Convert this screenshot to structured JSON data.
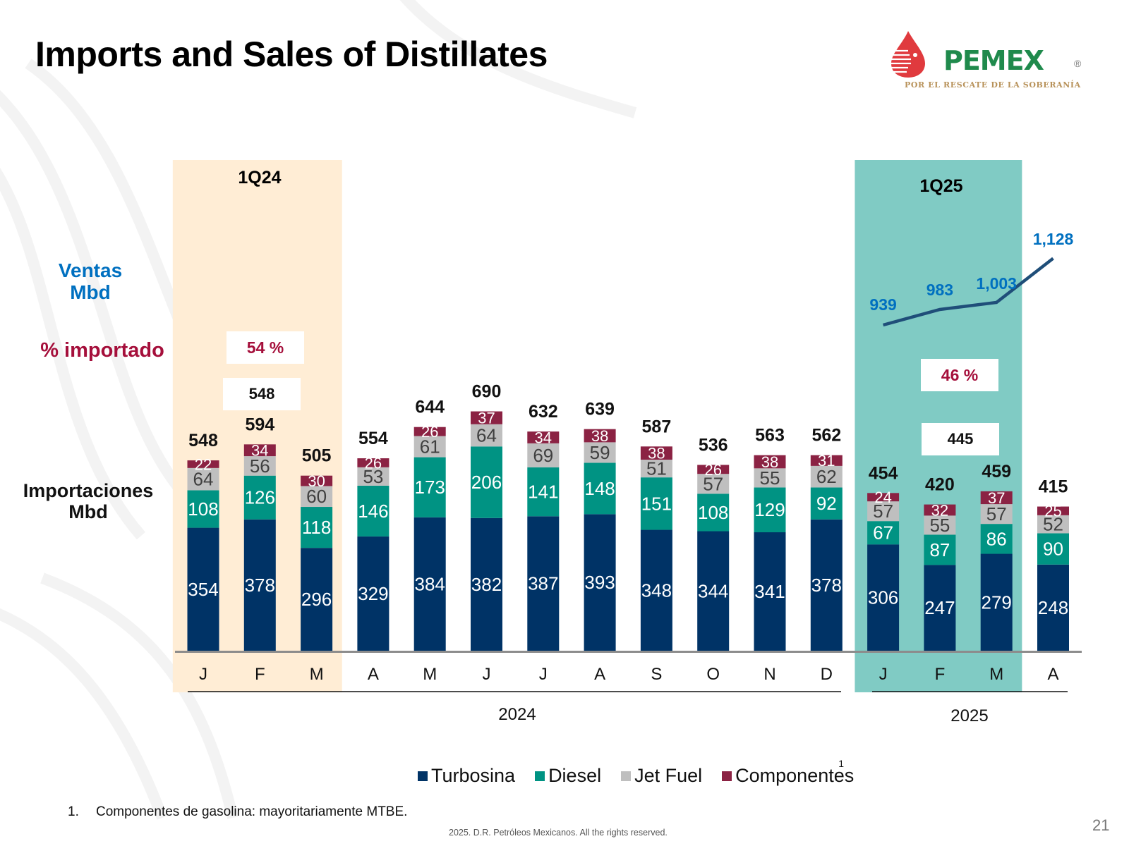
{
  "title": "Imports and Sales of Distillates",
  "logo": {
    "name": "PEMEX",
    "registered": "®",
    "tagline": "POR EL RESCATE DE LA SOBERANÍA"
  },
  "side_labels": {
    "ventas": [
      "Ventas",
      "Mbd"
    ],
    "pct_importado": "% importado",
    "importaciones": [
      "Importaciones",
      "Mbd"
    ]
  },
  "quarter_highlights": [
    {
      "label": "1Q24",
      "pct_importado": "54 %",
      "avg_imports": "548",
      "color": "#ffedd5"
    },
    {
      "label": "1Q25",
      "pct_importado": "46 %",
      "avg_imports": "445",
      "color": "#80cbc4"
    }
  ],
  "colors": {
    "turbosina": "#003366",
    "diesel": "#009383",
    "jet_fuel": "#bfbfbf",
    "componentes": "#8b2243",
    "ventas_line": "#1f4e79",
    "ventas_text": "#0070c0",
    "pct_text": "#a50f3b"
  },
  "chart_data": {
    "type": "bar",
    "stacked": true,
    "title": "Imports and Sales of Distillates",
    "xlabel": "",
    "ylabel": "Importaciones Mbd",
    "categories": [
      "J",
      "F",
      "M",
      "A",
      "M",
      "J",
      "J",
      "A",
      "S",
      "O",
      "N",
      "D",
      "J",
      "F",
      "M",
      "A"
    ],
    "year_groups": [
      {
        "label": "2024",
        "from": 0,
        "to": 11
      },
      {
        "label": "2025",
        "from": 12,
        "to": 15
      }
    ],
    "series": [
      {
        "name": "Turbosina",
        "key": "turbosina",
        "values": [
          354,
          378,
          296,
          329,
          384,
          382,
          387,
          393,
          348,
          344,
          341,
          378,
          306,
          247,
          279,
          248
        ]
      },
      {
        "name": "Diesel",
        "key": "diesel",
        "values": [
          108,
          126,
          118,
          146,
          173,
          206,
          141,
          148,
          151,
          108,
          129,
          92,
          67,
          87,
          86,
          90
        ]
      },
      {
        "name": "Jet Fuel",
        "key": "jet_fuel",
        "values": [
          64,
          56,
          60,
          53,
          61,
          64,
          69,
          59,
          51,
          57,
          55,
          62,
          57,
          55,
          57,
          52
        ]
      },
      {
        "name": "Componentes",
        "key": "componentes",
        "values": [
          22,
          34,
          30,
          26,
          26,
          37,
          34,
          38,
          38,
          26,
          38,
          31,
          24,
          32,
          37,
          25
        ],
        "footnote_ref": "1"
      }
    ],
    "totals": [
      548,
      594,
      505,
      554,
      644,
      690,
      632,
      639,
      587,
      536,
      563,
      562,
      454,
      420,
      459,
      415
    ],
    "ventas_line": {
      "name": "Ventas Mbd",
      "type": "line",
      "category_indices": [
        12,
        13,
        14,
        15
      ],
      "values": [
        939,
        983,
        1003,
        1128
      ],
      "labels": [
        "939",
        "983",
        "1,003",
        "1,128"
      ]
    },
    "highlight_ranges": [
      {
        "label": "1Q24",
        "from": 0,
        "to": 2
      },
      {
        "label": "1Q25",
        "from": 12,
        "to": 14
      }
    ],
    "legend": [
      "Turbosina",
      "Diesel",
      "Jet Fuel",
      "Componentes"
    ],
    "legend_position": "bottom",
    "grid": false
  },
  "footnote": {
    "number": "1.",
    "text": "Componentes de gasolina: mayoritariamente MTBE."
  },
  "copyright": "2025. D.R. Petróleos Mexicanos. All the rights reserved.",
  "page_number": "21"
}
